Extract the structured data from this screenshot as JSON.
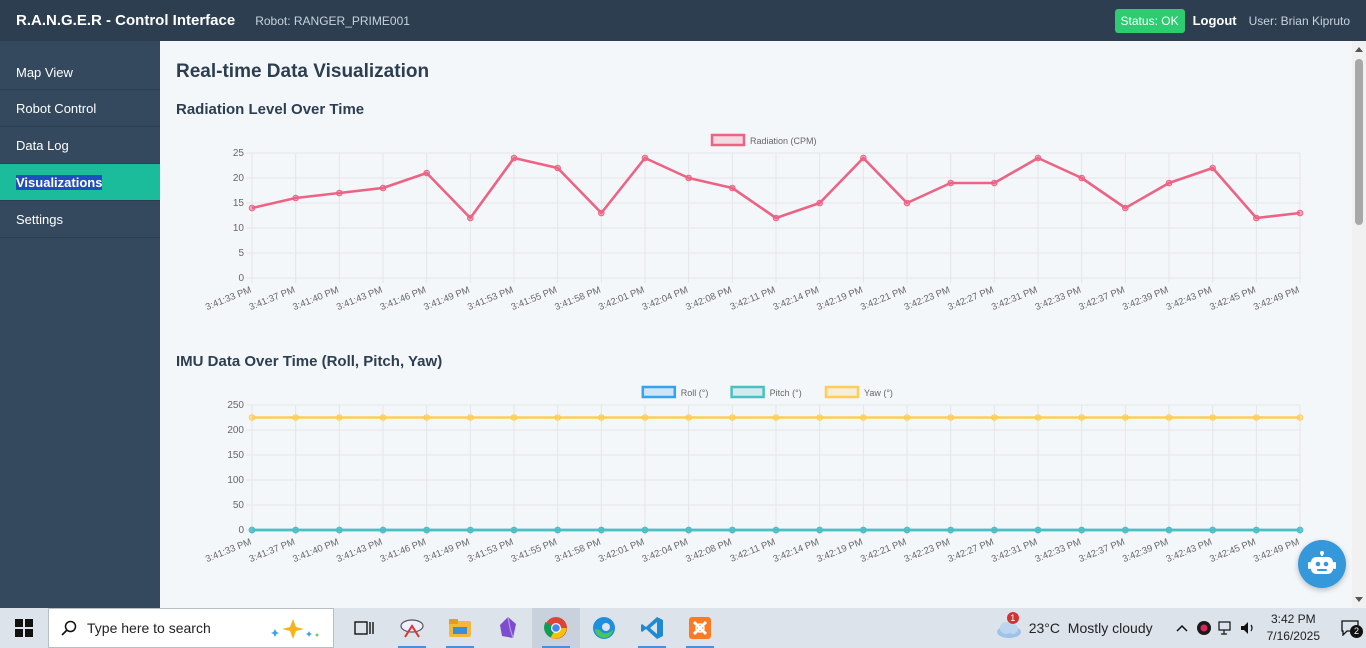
{
  "header": {
    "app_title": "R.A.N.G.E.R - Control Interface",
    "robot_label": "Robot: RANGER_PRIME001",
    "status": "Status: OK",
    "status_color": "#2ecc71",
    "logout": "Logout",
    "user": "User: Brian Kipruto"
  },
  "sidebar": {
    "items": [
      {
        "label": "Map View"
      },
      {
        "label": "Robot Control"
      },
      {
        "label": "Data Log"
      },
      {
        "label": "Visualizations"
      },
      {
        "label": "Settings"
      }
    ],
    "active_index": 3
  },
  "main": {
    "page_title": "Real-time Data Visualization",
    "radiation_title": "Radiation Level Over Time",
    "imu_title": "IMU Data Over Time (Roll, Pitch, Yaw)"
  },
  "chart_data": [
    {
      "type": "line",
      "x": [
        "3:41:33 PM",
        "3:41:37 PM",
        "3:41:40 PM",
        "3:41:43 PM",
        "3:41:46 PM",
        "3:41:49 PM",
        "3:41:53 PM",
        "3:41:55 PM",
        "3:41:58 PM",
        "3:42:01 PM",
        "3:42:04 PM",
        "3:42:08 PM",
        "3:42:11 PM",
        "3:42:14 PM",
        "3:42:19 PM",
        "3:42:21 PM",
        "3:42:23 PM",
        "3:42:27 PM",
        "3:42:31 PM",
        "3:42:33 PM",
        "3:42:37 PM",
        "3:42:39 PM",
        "3:42:43 PM",
        "3:42:45 PM",
        "3:42:49 PM"
      ],
      "series": [
        {
          "name": "Radiation (CPM)",
          "color": "#ec6384",
          "values": [
            14,
            16,
            17,
            18,
            21,
            12,
            24,
            22,
            13,
            24,
            20,
            18,
            12,
            15,
            24,
            15,
            19,
            19,
            24,
            20,
            14,
            19,
            22,
            12,
            13
          ]
        }
      ],
      "ylim": [
        0,
        25
      ],
      "yticks": [
        0,
        5,
        10,
        15,
        20,
        25
      ],
      "grid": true,
      "legend": "top"
    },
    {
      "type": "line",
      "x": [
        "3:41:33 PM",
        "3:41:37 PM",
        "3:41:40 PM",
        "3:41:43 PM",
        "3:41:46 PM",
        "3:41:49 PM",
        "3:41:53 PM",
        "3:41:55 PM",
        "3:41:58 PM",
        "3:42:01 PM",
        "3:42:04 PM",
        "3:42:08 PM",
        "3:42:11 PM",
        "3:42:14 PM",
        "3:42:19 PM",
        "3:42:21 PM",
        "3:42:23 PM",
        "3:42:27 PM",
        "3:42:31 PM",
        "3:42:33 PM",
        "3:42:37 PM",
        "3:42:39 PM",
        "3:42:43 PM",
        "3:42:45 PM",
        "3:42:49 PM"
      ],
      "series": [
        {
          "name": "Roll (°)",
          "color": "#36a2eb",
          "values": [
            0,
            0,
            0,
            0,
            0,
            0,
            0,
            0,
            0,
            0,
            0,
            0,
            0,
            0,
            0,
            0,
            0,
            0,
            0,
            0,
            0,
            0,
            0,
            0,
            0
          ]
        },
        {
          "name": "Pitch (°)",
          "color": "#4bc0c0",
          "values": [
            0,
            0,
            0,
            0,
            0,
            0,
            0,
            0,
            0,
            0,
            0,
            0,
            0,
            0,
            0,
            0,
            0,
            0,
            0,
            0,
            0,
            0,
            0,
            0,
            0
          ]
        },
        {
          "name": "Yaw (°)",
          "color": "#ffcd56",
          "values": [
            225,
            225,
            225,
            225,
            225,
            225,
            225,
            225,
            225,
            225,
            225,
            225,
            225,
            225,
            225,
            225,
            225,
            225,
            225,
            225,
            225,
            225,
            225,
            225,
            225
          ]
        }
      ],
      "ylim": [
        0,
        250
      ],
      "yticks": [
        0,
        50,
        100,
        150,
        200,
        250
      ],
      "grid": true,
      "legend": "top"
    }
  ],
  "taskbar": {
    "search_placeholder": "Type here to search",
    "weather": "23°C  Mostly cloudy",
    "weather_badge": "1",
    "time": "3:42 PM",
    "date": "7/16/2025",
    "notification_count": "2",
    "apps": [
      "task-view-icon",
      "snipping-tool-icon",
      "file-explorer-icon",
      "obsidian-icon",
      "chrome-icon",
      "edge-icon",
      "vscode-icon",
      "xampp-icon"
    ]
  }
}
